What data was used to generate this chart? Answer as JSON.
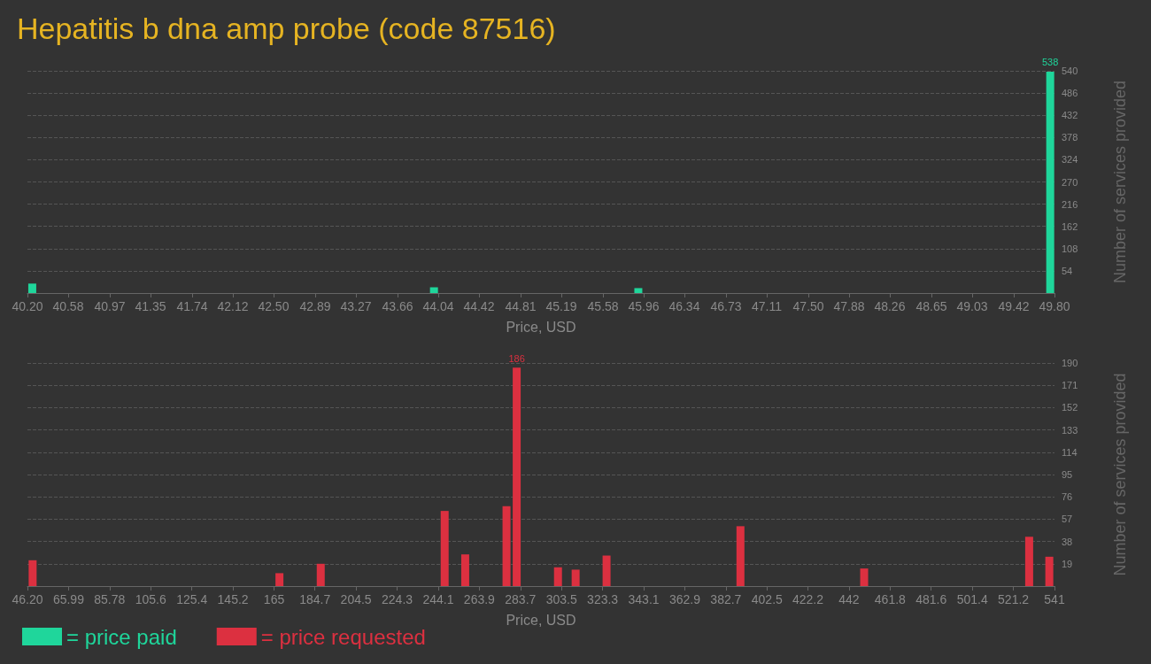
{
  "chart_data": [
    {
      "type": "bar",
      "title": "Hepatitis b dna amp probe (code 87516)",
      "xlabel": "Price, USD",
      "ylabel": "Number of services provided",
      "x": [
        40.245,
        44.0,
        45.91,
        49.76
      ],
      "series": [
        {
          "name": "= price paid",
          "color": "#1fd69b",
          "values": [
            23,
            14,
            12,
            538
          ],
          "value_labels": [
            null,
            null,
            null,
            "538"
          ]
        }
      ],
      "xlim": [
        40.2,
        49.8
      ],
      "xticks": [
        {
          "value": 40.2,
          "label": "40.20"
        },
        40.58,
        40.97,
        41.35,
        41.74,
        42.12,
        {
          "value": 42.5,
          "label": "42.50"
        },
        42.89,
        43.27,
        43.66,
        44.04,
        44.42,
        44.81,
        45.19,
        45.58,
        45.96,
        46.34,
        46.73,
        47.11,
        {
          "value": 47.5,
          "label": "47.50"
        },
        47.88,
        48.26,
        48.65,
        49.03,
        49.42,
        {
          "value": 49.8,
          "label": "49.80"
        }
      ],
      "ylim": [
        0,
        540
      ],
      "yticks": [
        54,
        108,
        162,
        216,
        270,
        324,
        378,
        432,
        486,
        540
      ],
      "grid": "y",
      "legend": "bottom left"
    },
    {
      "type": "bar",
      "xlabel": "Price, USD",
      "ylabel": "Number of services provided",
      "x": [
        48.7,
        167.6,
        187.5,
        247.2,
        257.1,
        277.0,
        281.9,
        301.8,
        310.3,
        325.2,
        389.7,
        449.3,
        528.8,
        538.5
      ],
      "series": [
        {
          "name": "= price requested",
          "color": "#dc3040",
          "values": [
            22,
            11,
            19,
            64,
            27,
            68,
            186,
            16,
            14,
            26,
            51,
            15,
            42,
            25
          ],
          "value_labels": [
            null,
            null,
            null,
            null,
            null,
            null,
            "186",
            null,
            null,
            null,
            null,
            null,
            null,
            null
          ]
        }
      ],
      "xlim": [
        46.2,
        541
      ],
      "xticks": [
        {
          "value": 46.2,
          "label": "46.20"
        },
        65.99,
        85.78,
        105.6,
        125.4,
        145.2,
        165,
        184.7,
        204.5,
        224.3,
        244.1,
        263.9,
        283.7,
        303.5,
        323.3,
        343.1,
        362.9,
        382.7,
        402.5,
        422.2,
        442,
        461.8,
        481.6,
        501.4,
        521.2,
        541
      ],
      "ylim": [
        0,
        190
      ],
      "yticks": [
        19,
        38,
        57,
        76,
        95,
        114,
        133,
        152,
        171,
        190
      ],
      "grid": "y",
      "legend": "bottom left"
    }
  ]
}
